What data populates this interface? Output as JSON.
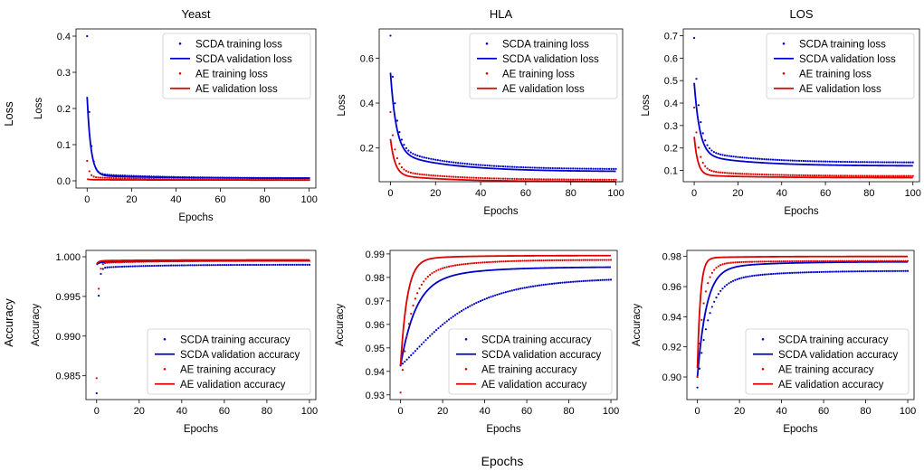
{
  "figure": {
    "row_labels": [
      "Loss",
      "Accuracy"
    ],
    "xlabel": "Epochs",
    "colors": {
      "scda": "#0000cc",
      "ae": "#dd0000"
    }
  },
  "chart_data": [
    {
      "type": "line",
      "panel": "yeast-loss",
      "title": "Yeast",
      "xlabel": "Epochs",
      "ylabel": "Loss",
      "xlim": [
        -5,
        103
      ],
      "ylim": [
        -0.02,
        0.42
      ],
      "xticks": [
        0,
        20,
        40,
        60,
        80,
        100
      ],
      "yticks": [
        0.0,
        0.1,
        0.2,
        0.3,
        0.4
      ],
      "xtick_labels": [
        "0",
        "20",
        "40",
        "60",
        "80",
        "100"
      ],
      "ytick_labels": [
        "0.0",
        "0.1",
        "0.2",
        "0.3",
        "0.4"
      ],
      "legend_position": "upper-right",
      "series": [
        {
          "name": "SCDA training loss",
          "kind": "dots",
          "color": "#0000cc",
          "start": 0.4,
          "mid": 0.02,
          "end": 0.007,
          "rate": 0.8,
          "tau": 30
        },
        {
          "name": "SCDA validation loss",
          "kind": "line",
          "color": "#0000cc",
          "start": 0.232,
          "mid": 0.015,
          "end": 0.007,
          "rate": 0.6,
          "tau": 30
        },
        {
          "name": "AE training loss",
          "kind": "dots",
          "color": "#dd0000",
          "start": 0.055,
          "mid": 0.01,
          "end": 0.002,
          "rate": 1.0,
          "tau": 30
        },
        {
          "name": "AE validation loss",
          "kind": "line",
          "color": "#dd0000",
          "start": 0.005,
          "mid": 0.003,
          "end": 0.002,
          "rate": 1.0,
          "tau": 30
        }
      ]
    },
    {
      "type": "line",
      "panel": "hla-loss",
      "title": "HLA",
      "xlabel": "Epochs",
      "ylabel": "Loss",
      "xlim": [
        -5,
        103
      ],
      "ylim": [
        0.05,
        0.73
      ],
      "xticks": [
        0,
        20,
        40,
        60,
        80,
        100
      ],
      "yticks": [
        0.2,
        0.4,
        0.6
      ],
      "xtick_labels": [
        "0",
        "20",
        "40",
        "60",
        "80",
        "100"
      ],
      "ytick_labels": [
        "0.2",
        "0.4",
        "0.6"
      ],
      "legend_position": "upper-right",
      "series": [
        {
          "name": "SCDA training loss",
          "kind": "dots",
          "color": "#0000cc",
          "start": 0.7,
          "mid": 0.2,
          "end": 0.105,
          "rate": 0.45,
          "tau": 25
        },
        {
          "name": "SCDA validation loss",
          "kind": "line",
          "color": "#0000cc",
          "start": 0.535,
          "mid": 0.18,
          "end": 0.095,
          "rate": 0.4,
          "tau": 25
        },
        {
          "name": "AE training loss",
          "kind": "dots",
          "color": "#dd0000",
          "start": 0.36,
          "mid": 0.1,
          "end": 0.058,
          "rate": 0.5,
          "tau": 25
        },
        {
          "name": "AE validation loss",
          "kind": "line",
          "color": "#dd0000",
          "start": 0.24,
          "mid": 0.08,
          "end": 0.05,
          "rate": 0.5,
          "tau": 25
        }
      ]
    },
    {
      "type": "line",
      "panel": "los-loss",
      "title": "LOS",
      "xlabel": "Epochs",
      "ylabel": "Loss",
      "xlim": [
        -5,
        103
      ],
      "ylim": [
        0.05,
        0.73
      ],
      "xticks": [
        0,
        20,
        40,
        60,
        80,
        100
      ],
      "yticks": [
        0.1,
        0.2,
        0.3,
        0.4,
        0.5,
        0.6,
        0.7
      ],
      "xtick_labels": [
        "0",
        "20",
        "40",
        "60",
        "80",
        "100"
      ],
      "ytick_labels": [
        "0.1",
        "0.2",
        "0.3",
        "0.4",
        "0.5",
        "0.6",
        "0.7"
      ],
      "legend_position": "upper-right",
      "series": [
        {
          "name": "SCDA training loss",
          "kind": "dots",
          "color": "#0000cc",
          "start": 0.69,
          "mid": 0.19,
          "end": 0.135,
          "rate": 0.45,
          "tau": 25
        },
        {
          "name": "SCDA validation loss",
          "kind": "line",
          "color": "#0000cc",
          "start": 0.49,
          "mid": 0.17,
          "end": 0.12,
          "rate": 0.4,
          "tau": 25
        },
        {
          "name": "AE training loss",
          "kind": "dots",
          "color": "#dd0000",
          "start": 0.38,
          "mid": 0.1,
          "end": 0.075,
          "rate": 0.5,
          "tau": 25
        },
        {
          "name": "AE validation loss",
          "kind": "line",
          "color": "#dd0000",
          "start": 0.25,
          "mid": 0.08,
          "end": 0.068,
          "rate": 0.6,
          "tau": 25
        }
      ]
    },
    {
      "type": "line",
      "panel": "yeast-accuracy",
      "title": "",
      "xlabel": "Epochs",
      "ylabel": "Accuracy",
      "xlim": [
        -5,
        103
      ],
      "ylim": [
        0.982,
        1.0008
      ],
      "xticks": [
        0,
        20,
        40,
        60,
        80,
        100
      ],
      "yticks": [
        0.985,
        0.99,
        0.995,
        1.0
      ],
      "xtick_labels": [
        "0",
        "20",
        "40",
        "60",
        "80",
        "100"
      ],
      "ytick_labels": [
        "0.985",
        "0.990",
        "0.995",
        "1.000"
      ],
      "legend_position": "lower-right",
      "series": [
        {
          "name": "SCDA training accuracy",
          "kind": "dots",
          "color": "#0000cc",
          "start": 0.9828,
          "mid": 0.9986,
          "end": 0.999,
          "rate": 1.5,
          "tau": 25
        },
        {
          "name": "SCDA validation accuracy",
          "kind": "line",
          "color": "#0000cc",
          "start": 0.999,
          "mid": 0.9993,
          "end": 0.9995,
          "rate": 1.0,
          "tau": 25
        },
        {
          "name": "AE training accuracy",
          "kind": "dots",
          "color": "#dd0000",
          "start": 0.9847,
          "mid": 0.9992,
          "end": 0.9995,
          "rate": 1.5,
          "tau": 25
        },
        {
          "name": "AE validation accuracy",
          "kind": "line",
          "color": "#dd0000",
          "start": 0.9991,
          "mid": 0.9995,
          "end": 0.9996,
          "rate": 1.0,
          "tau": 25
        }
      ]
    },
    {
      "type": "line",
      "panel": "hla-accuracy",
      "title": "",
      "xlabel": "Epochs",
      "ylabel": "Accuracy",
      "xlim": [
        -5,
        103
      ],
      "ylim": [
        0.928,
        0.9915
      ],
      "xticks": [
        0,
        20,
        40,
        60,
        80,
        100
      ],
      "yticks": [
        0.93,
        0.94,
        0.95,
        0.96,
        0.97,
        0.98,
        0.99
      ],
      "xtick_labels": [
        "0",
        "20",
        "40",
        "60",
        "80",
        "100"
      ],
      "ytick_labels": [
        "0.93",
        "0.94",
        "0.95",
        "0.96",
        "0.97",
        "0.98",
        "0.99"
      ],
      "legend_position": "lower-right",
      "series": [
        {
          "name": "SCDA training accuracy",
          "kind": "dots",
          "color": "#0000cc",
          "start": 0.9425,
          "mid": 0.9555,
          "end": 0.98,
          "rate": 0.06,
          "tau": 30
        },
        {
          "name": "SCDA validation accuracy",
          "kind": "line",
          "color": "#0000cc",
          "start": 0.9425,
          "mid": 0.977,
          "end": 0.9845,
          "rate": 0.15,
          "tau": 25
        },
        {
          "name": "AE training accuracy",
          "kind": "dots",
          "color": "#dd0000",
          "start": 0.931,
          "mid": 0.9795,
          "end": 0.9875,
          "rate": 0.22,
          "tau": 20
        },
        {
          "name": "AE validation accuracy",
          "kind": "line",
          "color": "#dd0000",
          "start": 0.9425,
          "mid": 0.9875,
          "end": 0.9893,
          "rate": 0.32,
          "tau": 20
        }
      ]
    },
    {
      "type": "line",
      "panel": "los-accuracy",
      "title": "",
      "xlabel": "Epochs",
      "ylabel": "Accuracy",
      "xlim": [
        -5,
        103
      ],
      "ylim": [
        0.885,
        0.984
      ],
      "xticks": [
        0,
        20,
        40,
        60,
        80,
        100
      ],
      "yticks": [
        0.9,
        0.92,
        0.94,
        0.96,
        0.98
      ],
      "xtick_labels": [
        "0",
        "20",
        "40",
        "60",
        "80",
        "100"
      ],
      "ytick_labels": [
        "0.90",
        "0.92",
        "0.94",
        "0.96",
        "0.98"
      ],
      "legend_position": "lower-right",
      "series": [
        {
          "name": "SCDA training accuracy",
          "kind": "dots",
          "color": "#0000cc",
          "start": 0.893,
          "mid": 0.962,
          "end": 0.9705,
          "rate": 0.2,
          "tau": 25
        },
        {
          "name": "SCDA validation accuracy",
          "kind": "line",
          "color": "#0000cc",
          "start": 0.9,
          "mid": 0.9712,
          "end": 0.9765,
          "rate": 0.24,
          "tau": 25
        },
        {
          "name": "AE training accuracy",
          "kind": "dots",
          "color": "#dd0000",
          "start": 0.9,
          "mid": 0.975,
          "end": 0.977,
          "rate": 0.35,
          "tau": 20
        },
        {
          "name": "AE validation accuracy",
          "kind": "line",
          "color": "#dd0000",
          "start": 0.906,
          "mid": 0.979,
          "end": 0.98,
          "rate": 0.7,
          "tau": 20
        }
      ]
    }
  ]
}
